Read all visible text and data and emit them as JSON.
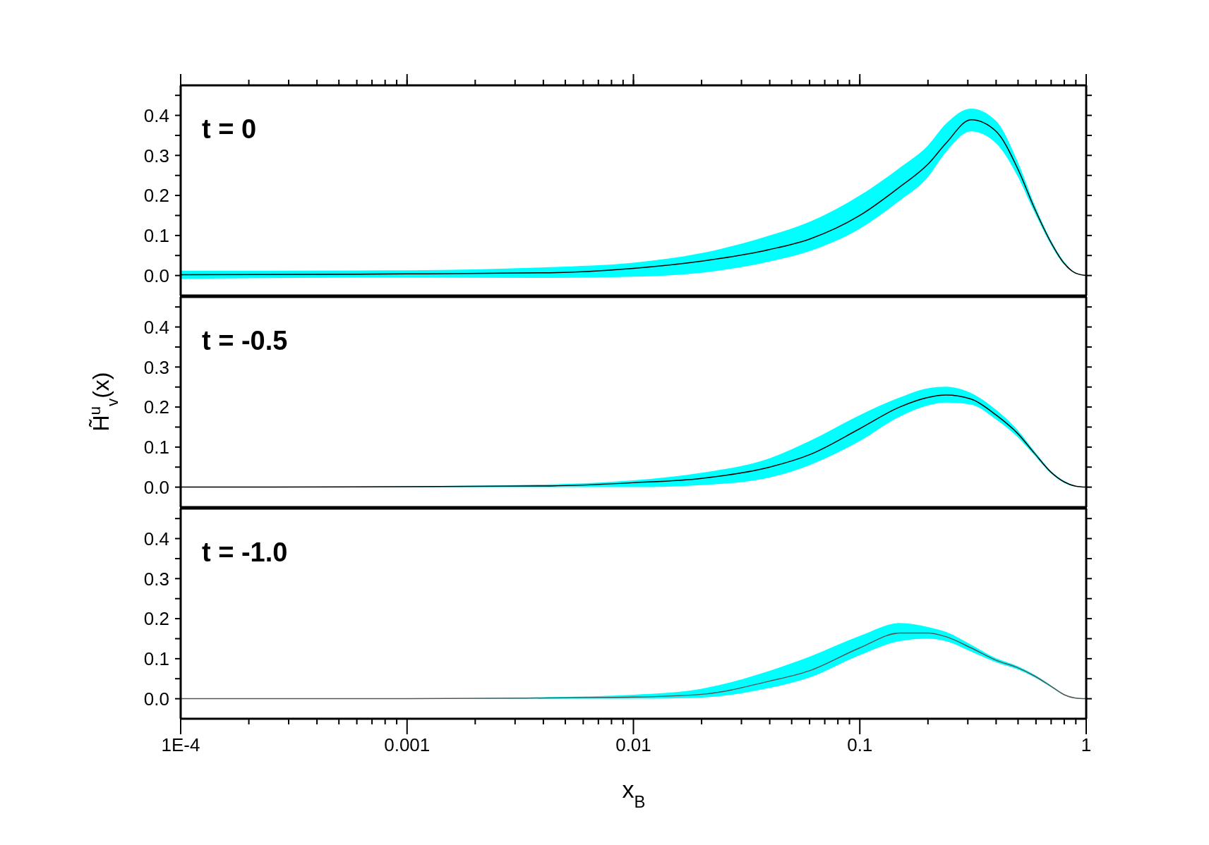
{
  "chart_data": [
    {
      "type": "line",
      "annotations": [
        "t = 0"
      ],
      "tick_labels": "y",
      "x": [
        0.0001,
        0.001,
        0.0043,
        0.01,
        0.02,
        0.04,
        0.06,
        0.1,
        0.15,
        0.2,
        0.24,
        0.31,
        0.4,
        0.5,
        0.59,
        0.7,
        0.8,
        0.89,
        1
      ],
      "series": [
        {
          "color": "#000000",
          "values": [
            0.002,
            0.004,
            0.007,
            0.018,
            0.036,
            0.065,
            0.091,
            0.15,
            0.221,
            0.278,
            0.33,
            0.389,
            0.36,
            0.265,
            0.169,
            0.082,
            0.03,
            0.007,
            0
          ],
          "lower": [
            -0.008,
            -0.005,
            -0.006,
            -0.003,
            0.007,
            0.035,
            0.061,
            0.117,
            0.187,
            0.246,
            0.308,
            0.36,
            0.33,
            0.246,
            0.159,
            0.076,
            0.027,
            0.006,
            0
          ],
          "upper": [
            0.012,
            0.013,
            0.021,
            0.032,
            0.056,
            0.1,
            0.134,
            0.2,
            0.269,
            0.325,
            0.379,
            0.417,
            0.386,
            0.282,
            0.178,
            0.087,
            0.034,
            0.008,
            0
          ]
        }
      ],
      "xlim": [
        0.0001,
        1
      ],
      "ylim": [
        -0.05,
        0.475
      ],
      "xticks": [
        0.0001,
        {
          "value": 0.0002,
          "label": null
        },
        {
          "value": 0.0003,
          "label": null
        },
        {
          "value": 0.0004,
          "label": null
        },
        {
          "value": 0.0005,
          "label": null
        },
        {
          "value": 0.0006,
          "label": null
        },
        {
          "value": 0.0007,
          "label": null
        },
        {
          "value": 0.0008,
          "label": null
        },
        {
          "value": 0.0009,
          "label": null
        },
        0.001,
        {
          "value": 0.002,
          "label": null
        },
        {
          "value": 0.003,
          "label": null
        },
        {
          "value": 0.004,
          "label": null
        },
        {
          "value": 0.005,
          "label": null
        },
        {
          "value": 0.006,
          "label": null
        },
        {
          "value": 0.007,
          "label": null
        },
        {
          "value": 0.008,
          "label": null
        },
        {
          "value": 0.009,
          "label": null
        },
        0.01,
        {
          "value": 0.02,
          "label": null
        },
        {
          "value": 0.03,
          "label": null
        },
        {
          "value": 0.04,
          "label": null
        },
        {
          "value": 0.05,
          "label": null
        },
        {
          "value": 0.06,
          "label": null
        },
        {
          "value": 0.07,
          "label": null
        },
        {
          "value": 0.08,
          "label": null
        },
        {
          "value": 0.09,
          "label": null
        },
        0.1,
        {
          "value": 0.2,
          "label": null
        },
        {
          "value": 0.3,
          "label": null
        },
        {
          "value": 0.4,
          "label": null
        },
        {
          "value": 0.5,
          "label": null
        },
        {
          "value": 0.6,
          "label": null
        },
        {
          "value": 0.7,
          "label": null
        },
        {
          "value": 0.8,
          "label": null
        },
        {
          "value": 0.9,
          "label": null
        },
        1
      ],
      "yticks": [
        {
          "value": 0,
          "label": "0.0"
        },
        {
          "value": 0.05,
          "label": null
        },
        0.1,
        {
          "value": 0.15,
          "label": null
        },
        0.2,
        {
          "value": 0.25,
          "label": null
        },
        0.3,
        {
          "value": 0.35,
          "label": null
        },
        0.4,
        {
          "value": 0.45,
          "label": null
        }
      ],
      "log": "x"
    },
    {
      "type": "line",
      "annotations": [
        "t = -0.5"
      ],
      "tick_labels": "y",
      "ylabel": "H̃$^{u}$$_{v}$(x)",
      "x": [
        0.0001,
        0.001,
        0.0043,
        0.01,
        0.02,
        0.04,
        0.06,
        0.1,
        0.15,
        0.2,
        0.24,
        0.31,
        0.4,
        0.5,
        0.59,
        0.7,
        0.8,
        0.89,
        1
      ],
      "series": [
        {
          "color": "#000000",
          "values": [
            0,
            0.001,
            0.003,
            0.011,
            0.022,
            0.05,
            0.081,
            0.146,
            0.2,
            0.224,
            0.23,
            0.22,
            0.18,
            0.133,
            0.085,
            0.037,
            0.013,
            0.003,
            0
          ],
          "lower": [
            0,
            0,
            0,
            0,
            0.005,
            0.024,
            0.055,
            0.115,
            0.176,
            0.204,
            0.211,
            0.206,
            0.169,
            0.124,
            0.08,
            0.034,
            0.011,
            0.002,
            0
          ],
          "upper": [
            0,
            0.002,
            0.007,
            0.017,
            0.036,
            0.072,
            0.115,
            0.18,
            0.224,
            0.247,
            0.251,
            0.235,
            0.193,
            0.141,
            0.09,
            0.04,
            0.015,
            0.004,
            0
          ]
        }
      ],
      "xlim": [
        0.0001,
        1
      ],
      "ylim": [
        -0.05,
        0.475
      ],
      "xticks": [
        0.0001,
        {
          "value": 0.0002,
          "label": null
        },
        {
          "value": 0.0003,
          "label": null
        },
        {
          "value": 0.0004,
          "label": null
        },
        {
          "value": 0.0005,
          "label": null
        },
        {
          "value": 0.0006,
          "label": null
        },
        {
          "value": 0.0007,
          "label": null
        },
        {
          "value": 0.0008,
          "label": null
        },
        {
          "value": 0.0009,
          "label": null
        },
        0.001,
        {
          "value": 0.002,
          "label": null
        },
        {
          "value": 0.003,
          "label": null
        },
        {
          "value": 0.004,
          "label": null
        },
        {
          "value": 0.005,
          "label": null
        },
        {
          "value": 0.006,
          "label": null
        },
        {
          "value": 0.007,
          "label": null
        },
        {
          "value": 0.008,
          "label": null
        },
        {
          "value": 0.009,
          "label": null
        },
        0.01,
        {
          "value": 0.02,
          "label": null
        },
        {
          "value": 0.03,
          "label": null
        },
        {
          "value": 0.04,
          "label": null
        },
        {
          "value": 0.05,
          "label": null
        },
        {
          "value": 0.06,
          "label": null
        },
        {
          "value": 0.07,
          "label": null
        },
        {
          "value": 0.08,
          "label": null
        },
        {
          "value": 0.09,
          "label": null
        },
        0.1,
        {
          "value": 0.2,
          "label": null
        },
        {
          "value": 0.3,
          "label": null
        },
        {
          "value": 0.4,
          "label": null
        },
        {
          "value": 0.5,
          "label": null
        },
        {
          "value": 0.6,
          "label": null
        },
        {
          "value": 0.7,
          "label": null
        },
        {
          "value": 0.8,
          "label": null
        },
        {
          "value": 0.9,
          "label": null
        },
        1
      ],
      "yticks": [
        {
          "value": 0,
          "label": "0.0"
        },
        {
          "value": 0.05,
          "label": null
        },
        0.1,
        {
          "value": 0.15,
          "label": null
        },
        0.2,
        {
          "value": 0.25,
          "label": null
        },
        0.3,
        {
          "value": 0.35,
          "label": null
        },
        0.4,
        {
          "value": 0.45,
          "label": null
        }
      ],
      "log": "x"
    },
    {
      "type": "line",
      "annotations": [
        "t = -1.0"
      ],
      "xlabel": "x$_{B}$",
      "x": [
        0.0001,
        0.001,
        0.0043,
        0.01,
        0.02,
        0.04,
        0.06,
        0.1,
        0.15,
        0.2,
        0.24,
        0.31,
        0.4,
        0.5,
        0.59,
        0.7,
        0.8,
        0.89,
        1
      ],
      "series": [
        {
          "color": "#555555",
          "values": [
            0,
            0,
            0.002,
            0.004,
            0.011,
            0.044,
            0.07,
            0.127,
            0.164,
            0.164,
            0.155,
            0.127,
            0.096,
            0.077,
            0.057,
            0.031,
            0.01,
            0.002,
            0
          ],
          "lower": [
            0,
            0,
            0,
            0,
            0.003,
            0.027,
            0.053,
            0.109,
            0.144,
            0.15,
            0.144,
            0.118,
            0.091,
            0.073,
            0.054,
            0.029,
            0.009,
            0.001,
            0
          ],
          "upper": [
            0,
            0,
            0.004,
            0.01,
            0.025,
            0.07,
            0.105,
            0.157,
            0.189,
            0.179,
            0.167,
            0.135,
            0.101,
            0.081,
            0.06,
            0.033,
            0.011,
            0.003,
            0
          ]
        }
      ],
      "xlim": [
        0.0001,
        1
      ],
      "ylim": [
        -0.05,
        0.475
      ],
      "xticks": [
        {
          "value": 0.0001,
          "label": "1E-4"
        },
        {
          "value": 0.0002,
          "label": null
        },
        {
          "value": 0.0003,
          "label": null
        },
        {
          "value": 0.0004,
          "label": null
        },
        {
          "value": 0.0005,
          "label": null
        },
        {
          "value": 0.0006,
          "label": null
        },
        {
          "value": 0.0007,
          "label": null
        },
        {
          "value": 0.0008,
          "label": null
        },
        {
          "value": 0.0009,
          "label": null
        },
        0.001,
        {
          "value": 0.002,
          "label": null
        },
        {
          "value": 0.003,
          "label": null
        },
        {
          "value": 0.004,
          "label": null
        },
        {
          "value": 0.005,
          "label": null
        },
        {
          "value": 0.006,
          "label": null
        },
        {
          "value": 0.007,
          "label": null
        },
        {
          "value": 0.008,
          "label": null
        },
        {
          "value": 0.009,
          "label": null
        },
        0.01,
        {
          "value": 0.02,
          "label": null
        },
        {
          "value": 0.03,
          "label": null
        },
        {
          "value": 0.04,
          "label": null
        },
        {
          "value": 0.05,
          "label": null
        },
        {
          "value": 0.06,
          "label": null
        },
        {
          "value": 0.07,
          "label": null
        },
        {
          "value": 0.08,
          "label": null
        },
        {
          "value": 0.09,
          "label": null
        },
        0.1,
        {
          "value": 0.2,
          "label": null
        },
        {
          "value": 0.3,
          "label": null
        },
        {
          "value": 0.4,
          "label": null
        },
        {
          "value": 0.5,
          "label": null
        },
        {
          "value": 0.6,
          "label": null
        },
        {
          "value": 0.7,
          "label": null
        },
        {
          "value": 0.8,
          "label": null
        },
        {
          "value": 0.9,
          "label": null
        },
        1
      ],
      "yticks": [
        {
          "value": 0,
          "label": "0.0"
        },
        {
          "value": 0.05,
          "label": null
        },
        0.1,
        {
          "value": 0.15,
          "label": null
        },
        0.2,
        {
          "value": 0.25,
          "label": null
        },
        0.3,
        {
          "value": 0.35,
          "label": null
        },
        0.4,
        {
          "value": 0.45,
          "label": null
        }
      ],
      "log": "x"
    }
  ]
}
